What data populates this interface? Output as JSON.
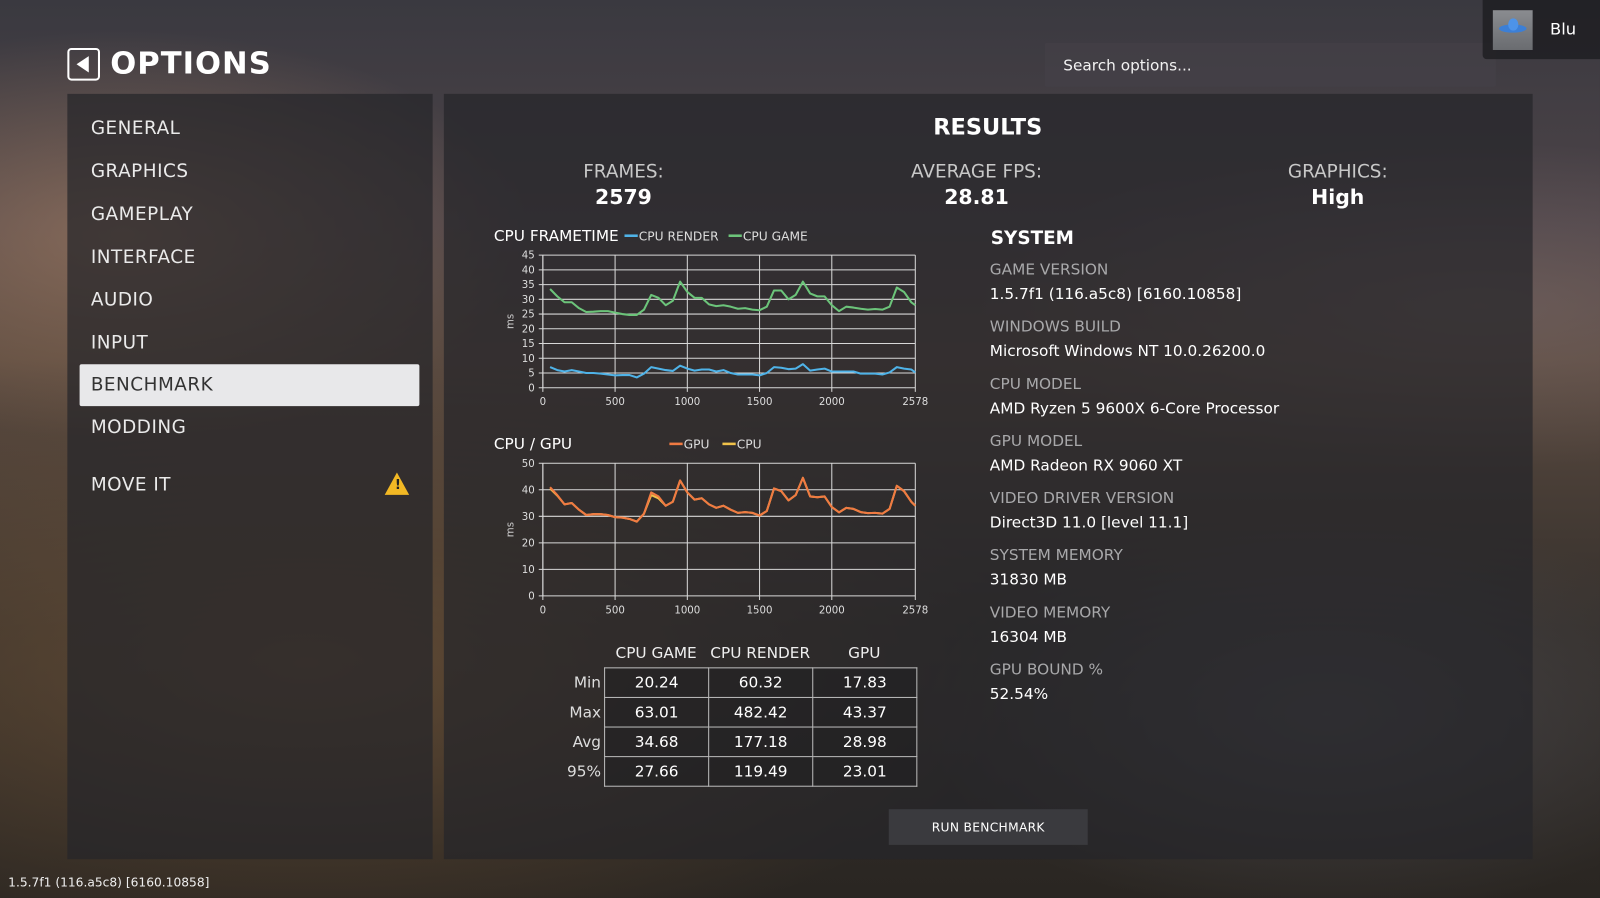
{
  "header": {
    "title": "OPTIONS",
    "search_placeholder": "Search options...",
    "user_name": "Blu"
  },
  "sidebar": {
    "items": [
      {
        "label": "GENERAL"
      },
      {
        "label": "GRAPHICS"
      },
      {
        "label": "GAMEPLAY"
      },
      {
        "label": "INTERFACE"
      },
      {
        "label": "AUDIO"
      },
      {
        "label": "INPUT"
      },
      {
        "label": "BENCHMARK",
        "selected": true
      },
      {
        "label": "MODDING"
      },
      {
        "label": "MOVE IT",
        "warning": true
      }
    ]
  },
  "results": {
    "title": "RESULTS",
    "frames_label": "FRAMES:",
    "frames": "2579",
    "fps_label": "AVERAGE FPS:",
    "fps": "28.81",
    "graphics_label": "GRAPHICS:",
    "graphics": "High"
  },
  "system": {
    "title": "SYSTEM",
    "items": [
      {
        "label": "GAME VERSION",
        "value": "1.5.7f1 (116.a5c8) [6160.10858]"
      },
      {
        "label": "WINDOWS BUILD",
        "value": "Microsoft Windows NT 10.0.26200.0"
      },
      {
        "label": "CPU MODEL",
        "value": "AMD Ryzen 5 9600X 6-Core Processor"
      },
      {
        "label": "GPU MODEL",
        "value": "AMD Radeon RX 9060 XT"
      },
      {
        "label": "VIDEO DRIVER VERSION",
        "value": "Direct3D 11.0 [level 11.1]"
      },
      {
        "label": "SYSTEM MEMORY",
        "value": "31830 MB"
      },
      {
        "label": "VIDEO MEMORY",
        "value": "16304 MB"
      },
      {
        "label": "GPU BOUND %",
        "value": "52.54%"
      }
    ]
  },
  "table": {
    "columns": [
      "CPU GAME",
      "CPU RENDER",
      "GPU"
    ],
    "rows": [
      {
        "label": "Min",
        "values": [
          "20.24",
          "60.32",
          "17.83"
        ]
      },
      {
        "label": "Max",
        "values": [
          "63.01",
          "482.42",
          "43.37"
        ]
      },
      {
        "label": "Avg",
        "values": [
          "34.68",
          "177.18",
          "28.98"
        ]
      },
      {
        "label": "95%",
        "values": [
          "27.66",
          "119.49",
          "23.01"
        ]
      }
    ]
  },
  "run_button": "RUN BENCHMARK",
  "footer_version": "1.5.7f1 (116.a5c8) [6160.10858]",
  "chart_data": [
    {
      "type": "line",
      "title": "CPU FRAMETIME",
      "ylabel": "ms",
      "xlim": [
        0,
        2578
      ],
      "ylim": [
        0,
        45
      ],
      "yticks": [
        0,
        5,
        10,
        15,
        20,
        25,
        30,
        35,
        40,
        45
      ],
      "xticks": [
        0,
        500,
        1000,
        1500,
        2000,
        2578
      ],
      "grid": true,
      "legend": "top",
      "x": [
        50,
        100,
        150,
        200,
        250,
        300,
        350,
        400,
        450,
        500,
        550,
        600,
        650,
        700,
        750,
        800,
        850,
        900,
        950,
        1000,
        1050,
        1100,
        1150,
        1200,
        1250,
        1300,
        1350,
        1400,
        1450,
        1500,
        1550,
        1600,
        1650,
        1700,
        1750,
        1800,
        1850,
        1900,
        1950,
        2000,
        2050,
        2100,
        2150,
        2200,
        2250,
        2300,
        2350,
        2400,
        2450,
        2500,
        2550,
        2578
      ],
      "series": [
        {
          "name": "CPU RENDER",
          "color": "#4fb3e8",
          "values": [
            7,
            6,
            5.5,
            6,
            5.5,
            5,
            5,
            4.8,
            4.5,
            4.2,
            4.3,
            4.3,
            3.5,
            4.8,
            7,
            6.5,
            6,
            5.7,
            7.5,
            6.5,
            5.8,
            6.2,
            6.2,
            5.5,
            6,
            5,
            4.5,
            4.5,
            4.5,
            4.2,
            5,
            7,
            6.8,
            6.3,
            6.5,
            8,
            5.8,
            6.2,
            6.5,
            5.5,
            5.5,
            5.5,
            5.5,
            4.8,
            4.8,
            4.8,
            4.5,
            5.2,
            7,
            6.5,
            6.2,
            5.2
          ]
        },
        {
          "name": "CPU GAME",
          "color": "#6cc47a",
          "values": [
            33.5,
            31,
            29,
            29,
            27,
            25.7,
            25.8,
            26,
            26,
            25.5,
            25,
            24.7,
            24.7,
            26.5,
            31.5,
            30.5,
            28,
            29.5,
            36,
            32.5,
            30.5,
            30.5,
            28.3,
            27.7,
            28,
            27.5,
            26.8,
            27,
            26.5,
            26.3,
            27.5,
            33,
            33,
            30,
            31.5,
            36,
            32,
            31,
            31,
            28,
            26,
            27.5,
            27.2,
            26.8,
            26.5,
            26.7,
            26.5,
            27.5,
            34,
            32.5,
            29,
            28
          ]
        }
      ]
    },
    {
      "type": "line",
      "title": "CPU / GPU",
      "ylabel": "ms",
      "xlim": [
        0,
        2578
      ],
      "ylim": [
        0,
        50
      ],
      "yticks": [
        0,
        10,
        20,
        30,
        40,
        50
      ],
      "xticks": [
        0,
        500,
        1000,
        1500,
        2000,
        2578
      ],
      "grid": true,
      "legend": "top",
      "x": [
        50,
        100,
        150,
        200,
        250,
        300,
        350,
        400,
        450,
        500,
        550,
        600,
        650,
        700,
        750,
        800,
        850,
        900,
        950,
        1000,
        1050,
        1100,
        1150,
        1200,
        1250,
        1300,
        1350,
        1400,
        1450,
        1500,
        1550,
        1600,
        1650,
        1700,
        1750,
        1800,
        1850,
        1900,
        1950,
        2000,
        2050,
        2100,
        2150,
        2200,
        2250,
        2300,
        2350,
        2400,
        2450,
        2500,
        2550,
        2578
      ],
      "series": [
        {
          "name": "CPU",
          "color": "#f0c24a",
          "values": [
            40.5,
            37.8,
            34.5,
            35,
            32.5,
            30.5,
            30.8,
            30.8,
            30.5,
            29.7,
            29.5,
            29,
            28,
            31,
            38,
            36.8,
            34,
            35.5,
            43.5,
            39,
            36.3,
            36.8,
            34.5,
            33.2,
            34,
            32.5,
            31.3,
            31.6,
            31.3,
            30.3,
            32,
            40.5,
            39.5,
            36,
            38,
            44.5,
            37.5,
            37.2,
            37.5,
            33.5,
            31.5,
            33.2,
            32.8,
            31.6,
            31.2,
            31.3,
            31,
            32.8,
            41.5,
            39.5,
            35.5,
            34
          ]
        },
        {
          "name": "GPU",
          "color": "#f07a42",
          "values": [
            41,
            38,
            34.5,
            35,
            32.5,
            30.5,
            30.8,
            30.8,
            30.5,
            29.7,
            29.5,
            29,
            28,
            31,
            39,
            37.5,
            34,
            35.5,
            43.5,
            39,
            36.3,
            36.8,
            34.5,
            33.2,
            34,
            32.5,
            31.3,
            31.6,
            31.3,
            30.3,
            32,
            40.5,
            39.5,
            36,
            38,
            44.5,
            37.5,
            37.2,
            37.5,
            33.5,
            31.5,
            33.2,
            32.8,
            31.6,
            31.2,
            31.3,
            31,
            32.8,
            41.5,
            39.5,
            35.5,
            34
          ]
        }
      ]
    }
  ]
}
